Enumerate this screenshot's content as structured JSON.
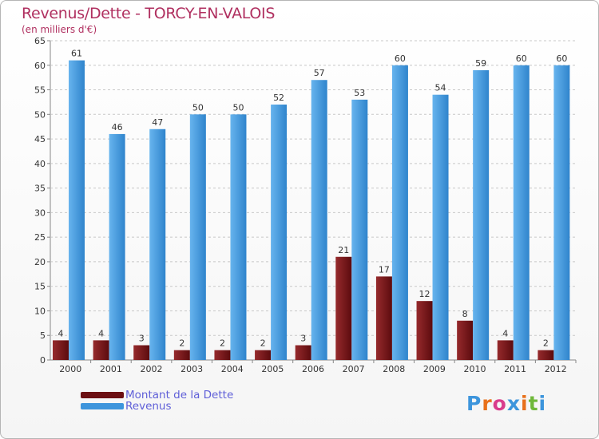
{
  "header": {
    "title": "Revenus/Dette - TORCY-EN-VALOIS",
    "subtitle": "(en milliers d'€)"
  },
  "colors": {
    "dette": "#7a1418",
    "revenus": "#3d95dc",
    "title": "#b03060",
    "legend_text": "#5f5fd8"
  },
  "chart_data": {
    "type": "bar",
    "title": "Revenus/Dette - TORCY-EN-VALOIS",
    "subtitle": "(en milliers d'€)",
    "categories": [
      "2000",
      "2001",
      "2002",
      "2003",
      "2004",
      "2005",
      "2006",
      "2007",
      "2008",
      "2009",
      "2010",
      "2011",
      "2012"
    ],
    "series": [
      {
        "name": "Montant de la Dette",
        "color": "#7a1418",
        "values": [
          4,
          4,
          3,
          2,
          2,
          2,
          3,
          21,
          17,
          12,
          8,
          4,
          2
        ]
      },
      {
        "name": "Revenus",
        "color": "#3d95dc",
        "values": [
          61,
          46,
          47,
          50,
          50,
          52,
          57,
          53,
          60,
          54,
          59,
          60,
          60
        ]
      }
    ],
    "yticks": [
      0,
      5,
      10,
      15,
      20,
      25,
      30,
      35,
      40,
      45,
      50,
      55,
      60,
      65
    ],
    "ylim": [
      0,
      65
    ],
    "grid": true,
    "legend_position": "bottom-left"
  },
  "legend": {
    "items": [
      {
        "label": "Montant de la Dette",
        "color": "#7a1418"
      },
      {
        "label": "Revenus",
        "color": "#3d95dc"
      }
    ]
  },
  "logo": {
    "text": "Proxiti",
    "letter_colors": [
      "#3d95dc",
      "#e8701a",
      "#d93c8c",
      "#3d95dc",
      "#e8701a",
      "#6fb83a",
      "#3d95dc"
    ]
  }
}
